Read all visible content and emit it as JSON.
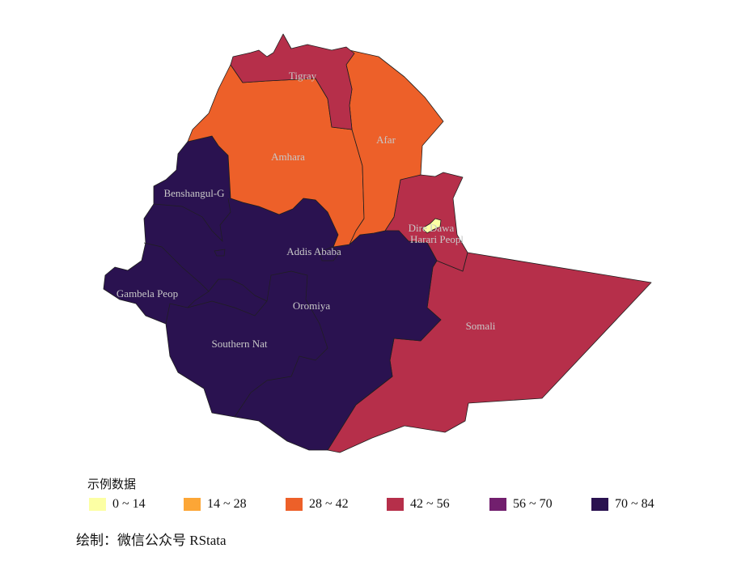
{
  "map": {
    "regions": [
      {
        "id": "tigray",
        "name": "Tigray",
        "class": 3
      },
      {
        "id": "afar",
        "name": "Afar",
        "class": 2
      },
      {
        "id": "amhara",
        "name": "Amhara",
        "class": 2
      },
      {
        "id": "benshangul",
        "name": "Benshangul-G",
        "class": 5
      },
      {
        "id": "dire-dawa",
        "name": "Dire Dawa",
        "class": 0
      },
      {
        "id": "harari",
        "name": "Harari Peopl",
        "class": 3
      },
      {
        "id": "addis-ababa",
        "name": "Addis Ababa",
        "class": 5
      },
      {
        "id": "gambela",
        "name": "Gambela Peop",
        "class": 5
      },
      {
        "id": "oromiya",
        "name": "Oromiya",
        "class": 5
      },
      {
        "id": "somali",
        "name": "Somali",
        "class": 3
      },
      {
        "id": "southern",
        "name": "Southern Nat",
        "class": 5
      }
    ]
  },
  "legend": {
    "title": "示例数据",
    "items": [
      {
        "label": "0 ~ 14",
        "color": "#FCFFA4"
      },
      {
        "label": "14 ~ 28",
        "color": "#FCA636"
      },
      {
        "label": "28 ~ 42",
        "color": "#ED6029"
      },
      {
        "label": "42 ~ 56",
        "color": "#B62F4A"
      },
      {
        "label": "56 ~ 70",
        "color": "#721F6E"
      },
      {
        "label": "70 ~ 84",
        "color": "#2A1250"
      }
    ]
  },
  "caption": "绘制：微信公众号 RStata"
}
